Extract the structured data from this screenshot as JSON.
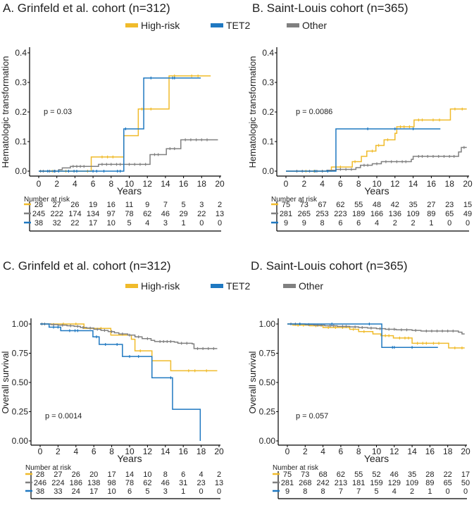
{
  "legend": {
    "items": [
      {
        "name": "High-risk",
        "color": "#f0bb2b"
      },
      {
        "name": "TET2",
        "color": "#1f78c1"
      },
      {
        "name": "Other",
        "color": "#808080"
      }
    ]
  },
  "chart_data": [
    {
      "id": "A",
      "type": "line",
      "subtype": "step",
      "title": "A. Grinfeld et al. cohort (n=312)",
      "xlabel": "Years",
      "ylabel": "Hematologic transformation",
      "xlim": [
        0,
        20
      ],
      "ylim": [
        0,
        0.4
      ],
      "xticks": [
        "0",
        "2",
        "4",
        "6",
        "8",
        "10",
        "12",
        "14",
        "16",
        "18",
        "20"
      ],
      "yticks": [
        "0.0",
        "0.1",
        "0.2",
        "0.3",
        "0.4"
      ],
      "ytick_values": [
        0,
        0.1,
        0.2,
        0.3,
        0.4
      ],
      "grid": false,
      "annotation": "p = 0.03",
      "risk_table_label": "Number at risk",
      "series": [
        {
          "name": "High-risk",
          "color": "#f0bb2b",
          "steps": [
            [
              0,
              0
            ],
            [
              5.8,
              0.048
            ],
            [
              9.4,
              0.12
            ],
            [
              11.0,
              0.21
            ],
            [
              14.4,
              0.322
            ],
            [
              19.0,
              0.322
            ]
          ],
          "censor": [
            1.5,
            3.0,
            5.4,
            7.0,
            7.6,
            8.2,
            11.4,
            12.4,
            15.0,
            16.9,
            17.6
          ],
          "at_risk": [
            28,
            27,
            26,
            19,
            16,
            11,
            9,
            7,
            5,
            3,
            2
          ]
        },
        {
          "name": "Other",
          "color": "#808080",
          "steps": [
            [
              0,
              0
            ],
            [
              2.2,
              0.005
            ],
            [
              2.6,
              0.011
            ],
            [
              3.5,
              0.016
            ],
            [
              6.6,
              0.023
            ],
            [
              12.3,
              0.056
            ],
            [
              14.1,
              0.076
            ],
            [
              15.7,
              0.106
            ],
            [
              19.8,
              0.106
            ]
          ],
          "censor": [
            0.2,
            0.5,
            1.2,
            1.8,
            3.8,
            4.2,
            4.6,
            5.0,
            7.0,
            7.5,
            8.0,
            8.6,
            9.0,
            10.0,
            10.6,
            11.2,
            11.8,
            12.8,
            13.2,
            14.5,
            15.0,
            16.2,
            16.8,
            17.4,
            18.0,
            18.6
          ],
          "at_risk": [
            245,
            222,
            174,
            134,
            97,
            78,
            62,
            46,
            29,
            22,
            13
          ]
        },
        {
          "name": "TET2",
          "color": "#1f78c1",
          "steps": [
            [
              0,
              0
            ],
            [
              9.4,
              0.143
            ],
            [
              11.6,
              0.315
            ],
            [
              17.9,
              0.315
            ]
          ],
          "censor": [
            1.0,
            1.7,
            2.2,
            3.3,
            3.9,
            4.2,
            6.0,
            6.4,
            7.2,
            8.7,
            9.0,
            9.6,
            12.4,
            14.8,
            15.0
          ],
          "at_risk": [
            38,
            32,
            22,
            17,
            10,
            5,
            4,
            3,
            1,
            0,
            0
          ]
        }
      ]
    },
    {
      "id": "B",
      "type": "line",
      "subtype": "step",
      "title": "B. Saint-Louis cohort (n=365)",
      "xlabel": "Years",
      "ylabel": "Hematologic transformation",
      "xlim": [
        0,
        20
      ],
      "ylim": [
        0,
        0.4
      ],
      "xticks": [
        "0",
        "2",
        "4",
        "6",
        "8",
        "10",
        "12",
        "14",
        "16",
        "18",
        "20"
      ],
      "yticks": [
        "0.0",
        "0.1",
        "0.2",
        "0.3",
        "0.4"
      ],
      "ytick_values": [
        0,
        0.1,
        0.2,
        0.3,
        0.4
      ],
      "grid": false,
      "annotation": "p = 0.0086",
      "risk_table_label": "Number at risk",
      "series": [
        {
          "name": "High-risk",
          "color": "#f0bb2b",
          "steps": [
            [
              0,
              0
            ],
            [
              5.0,
              0.014
            ],
            [
              7.3,
              0.032
            ],
            [
              8.3,
              0.05
            ],
            [
              8.9,
              0.068
            ],
            [
              9.9,
              0.087
            ],
            [
              10.8,
              0.106
            ],
            [
              12.0,
              0.128
            ],
            [
              12.2,
              0.15
            ],
            [
              14.1,
              0.173
            ],
            [
              18.1,
              0.21
            ],
            [
              19.9,
              0.21
            ]
          ],
          "censor": [
            2.2,
            3.1,
            4.0,
            5.5,
            6.0,
            7.6,
            9.5,
            10.2,
            11.2,
            12.6,
            13.0,
            13.6,
            14.6,
            15.0,
            16.2,
            16.9,
            18.6,
            19.4
          ],
          "at_risk": [
            75,
            73,
            67,
            62,
            55,
            48,
            42,
            35,
            27,
            23,
            15
          ]
        },
        {
          "name": "Other",
          "color": "#808080",
          "steps": [
            [
              0,
              0
            ],
            [
              4.5,
              0.003
            ],
            [
              5.5,
              0.006
            ],
            [
              7.7,
              0.012
            ],
            [
              8.2,
              0.02
            ],
            [
              9.5,
              0.025
            ],
            [
              10.5,
              0.032
            ],
            [
              13.8,
              0.04
            ],
            [
              14.0,
              0.05
            ],
            [
              19.0,
              0.065
            ],
            [
              19.3,
              0.08
            ],
            [
              19.9,
              0.08
            ]
          ],
          "censor": [
            1.2,
            1.8,
            2.6,
            3.4,
            4.0,
            6.0,
            6.6,
            7.2,
            8.6,
            9.0,
            10.0,
            11.0,
            11.6,
            12.2,
            12.8,
            13.2,
            14.6,
            15.0,
            15.6,
            16.2,
            16.8,
            17.4,
            18.0,
            18.5,
            19.6
          ],
          "at_risk": [
            281,
            265,
            253,
            223,
            189,
            166,
            136,
            109,
            89,
            65,
            49
          ]
        },
        {
          "name": "TET2",
          "color": "#1f78c1",
          "steps": [
            [
              0,
              0
            ],
            [
              5.5,
              0.143
            ],
            [
              17.0,
              0.143
            ]
          ],
          "censor": [
            3.2,
            4.6,
            9.0,
            12.0,
            14.0
          ],
          "at_risk": [
            9,
            9,
            8,
            6,
            6,
            4,
            2,
            2,
            1,
            0,
            0
          ]
        }
      ]
    },
    {
      "id": "C",
      "type": "line",
      "subtype": "step",
      "title": "C. Grinfeld et al. cohort (n=312)",
      "xlabel": "Years",
      "ylabel": "Overall survival",
      "xlim": [
        0,
        20
      ],
      "ylim": [
        0,
        1
      ],
      "xticks": [
        "0",
        "2",
        "4",
        "6",
        "8",
        "10",
        "12",
        "14",
        "16",
        "18",
        "20"
      ],
      "yticks": [
        "0.00",
        "0.25",
        "0.50",
        "0.75",
        "1.00"
      ],
      "ytick_values": [
        0,
        0.25,
        0.5,
        0.75,
        1.0
      ],
      "grid": false,
      "annotation": "p = 0.0014",
      "risk_table_label": "Number at risk",
      "series": [
        {
          "name": "High-risk",
          "color": "#f0bb2b",
          "steps": [
            [
              0,
              1
            ],
            [
              4.9,
              0.962
            ],
            [
              7.9,
              0.905
            ],
            [
              10.2,
              0.87
            ],
            [
              10.6,
              0.77
            ],
            [
              12.5,
              0.685
            ],
            [
              14.6,
              0.6
            ],
            [
              19.8,
              0.6
            ]
          ],
          "censor": [
            2.6,
            4.0,
            6.8,
            11.2,
            16.6,
            17.3,
            18.6
          ],
          "at_risk": [
            28,
            27,
            26,
            20,
            17,
            14,
            10,
            8,
            6,
            4,
            2
          ]
        },
        {
          "name": "Other",
          "color": "#808080",
          "steps": [
            [
              0,
              1
            ],
            [
              1.2,
              0.995
            ],
            [
              2.0,
              0.99
            ],
            [
              3.0,
              0.985
            ],
            [
              3.8,
              0.98
            ],
            [
              4.5,
              0.97
            ],
            [
              5.2,
              0.965
            ],
            [
              6.0,
              0.955
            ],
            [
              6.8,
              0.945
            ],
            [
              7.6,
              0.935
            ],
            [
              8.3,
              0.925
            ],
            [
              8.8,
              0.915
            ],
            [
              9.8,
              0.905
            ],
            [
              10.6,
              0.89
            ],
            [
              11.4,
              0.875
            ],
            [
              12.4,
              0.86
            ],
            [
              12.8,
              0.85
            ],
            [
              15.0,
              0.845
            ],
            [
              15.4,
              0.835
            ],
            [
              17.0,
              0.83
            ],
            [
              17.2,
              0.79
            ],
            [
              19.8,
              0.79
            ]
          ],
          "censor": [
            0.2,
            0.5,
            1.5,
            2.5,
            3.4,
            4.2,
            4.8,
            5.6,
            6.4,
            7.2,
            8.0,
            9.2,
            10.0,
            11.0,
            12.0,
            13.4,
            13.8,
            14.2,
            14.6,
            15.8,
            16.4,
            17.6,
            18.2,
            18.8,
            19.4
          ],
          "at_risk": [
            246,
            224,
            186,
            138,
            98,
            78,
            62,
            46,
            31,
            23,
            13
          ]
        },
        {
          "name": "TET2",
          "color": "#1f78c1",
          "steps": [
            [
              0,
              1
            ],
            [
              1.0,
              0.973
            ],
            [
              2.3,
              0.943
            ],
            [
              5.9,
              0.89
            ],
            [
              6.6,
              0.825
            ],
            [
              9.2,
              0.722
            ],
            [
              12.5,
              0.54
            ],
            [
              14.8,
              0.27
            ],
            [
              17.9,
              0.0
            ]
          ],
          "censor": [
            1.5,
            2.0,
            3.3,
            3.9,
            4.2,
            6.3,
            7.3,
            8.6,
            10.0,
            11.0,
            14.6
          ],
          "at_risk": [
            38,
            33,
            24,
            17,
            10,
            6,
            5,
            3,
            1,
            0,
            0
          ]
        }
      ]
    },
    {
      "id": "D",
      "type": "line",
      "subtype": "step",
      "title": "D. Saint-Louis cohort (n=365)",
      "xlabel": "Years",
      "ylabel": "Overall survival",
      "xlim": [
        0,
        20
      ],
      "ylim": [
        0,
        1
      ],
      "xticks": [
        "0",
        "2",
        "4",
        "6",
        "8",
        "10",
        "12",
        "14",
        "16",
        "18",
        "20"
      ],
      "yticks": [
        "0.00",
        "0.25",
        "0.50",
        "0.75",
        "1.00"
      ],
      "ytick_values": [
        0,
        0.25,
        0.5,
        0.75,
        1.0
      ],
      "grid": false,
      "annotation": "p = 0.057",
      "risk_table_label": "Number at risk",
      "series": [
        {
          "name": "High-risk",
          "color": "#f0bb2b",
          "steps": [
            [
              0,
              1
            ],
            [
              0.6,
              0.99
            ],
            [
              2.5,
              0.985
            ],
            [
              4.0,
              0.97
            ],
            [
              7.0,
              0.955
            ],
            [
              8.0,
              0.935
            ],
            [
              9.6,
              0.915
            ],
            [
              10.5,
              0.9
            ],
            [
              11.9,
              0.88
            ],
            [
              14.0,
              0.835
            ],
            [
              18.1,
              0.795
            ],
            [
              19.9,
              0.795
            ]
          ],
          "censor": [
            1.2,
            1.8,
            3.2,
            4.6,
            5.4,
            6.2,
            7.4,
            8.6,
            11.0,
            11.4,
            12.6,
            13.2,
            13.6,
            14.6,
            15.2,
            15.6,
            16.4,
            17.0,
            18.8,
            19.6
          ],
          "at_risk": [
            75,
            73,
            68,
            62,
            55,
            52,
            46,
            35,
            28,
            22,
            17
          ]
        },
        {
          "name": "Other",
          "color": "#808080",
          "steps": [
            [
              0,
              1
            ],
            [
              2.0,
              0.995
            ],
            [
              3.0,
              0.99
            ],
            [
              4.2,
              0.985
            ],
            [
              5.6,
              0.98
            ],
            [
              7.0,
              0.975
            ],
            [
              8.0,
              0.97
            ],
            [
              9.0,
              0.965
            ],
            [
              10.0,
              0.96
            ],
            [
              11.0,
              0.955
            ],
            [
              12.2,
              0.95
            ],
            [
              14.0,
              0.945
            ],
            [
              15.0,
              0.94
            ],
            [
              19.2,
              0.93
            ],
            [
              19.6,
              0.915
            ],
            [
              19.9,
              0.915
            ]
          ],
          "censor": [
            0.4,
            0.9,
            1.4,
            2.4,
            3.4,
            3.8,
            4.8,
            5.2,
            6.2,
            6.6,
            7.6,
            8.4,
            9.4,
            10.4,
            11.4,
            12.0,
            12.8,
            13.4,
            14.4,
            15.6,
            16.2,
            16.8,
            17.4,
            18.0,
            18.6
          ],
          "at_risk": [
            281,
            268,
            242,
            213,
            181,
            159,
            129,
            109,
            89,
            65,
            50
          ]
        },
        {
          "name": "TET2",
          "color": "#1f78c1",
          "steps": [
            [
              0,
              1
            ],
            [
              10.6,
              0.8
            ],
            [
              16.9,
              0.8
            ]
          ],
          "censor": [
            1.4,
            5.0,
            9.2,
            11.8,
            12.0,
            14.0
          ],
          "at_risk": [
            9,
            8,
            8,
            7,
            7,
            5,
            4,
            2,
            1,
            0,
            0
          ]
        }
      ]
    }
  ]
}
